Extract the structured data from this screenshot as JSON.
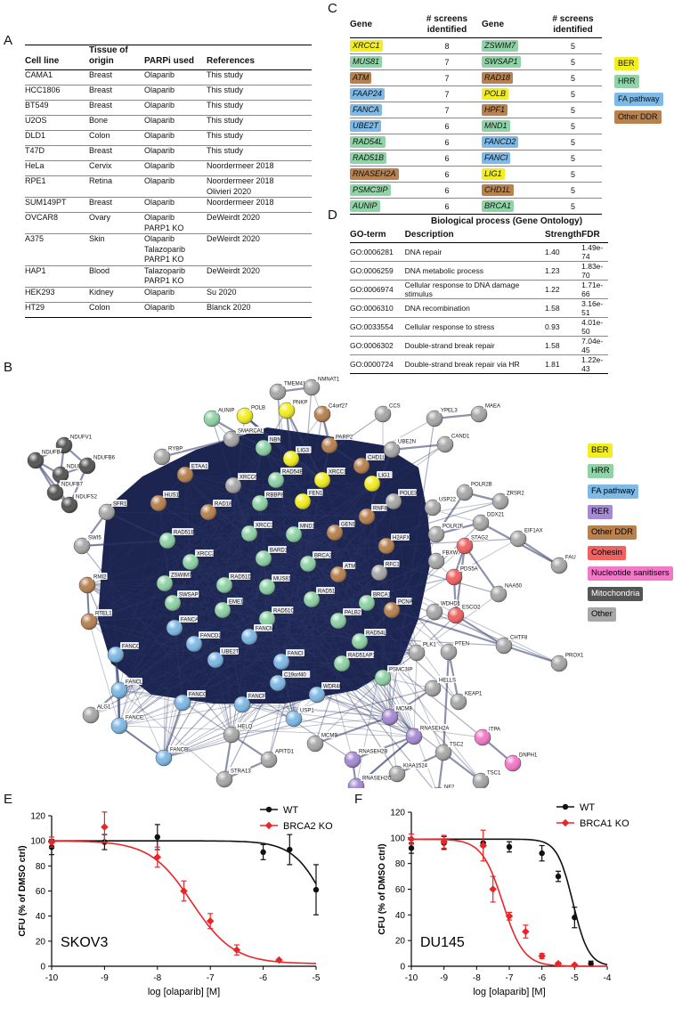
{
  "panels": {
    "a": "A",
    "b": "B",
    "c": "C",
    "d": "D",
    "e": "E",
    "f": "F"
  },
  "tableA": {
    "headers": [
      "Cell line",
      "Tissue of origin",
      "PARPi used",
      "References"
    ],
    "rows": [
      [
        "CAMA1",
        "Breast",
        "Olaparib",
        "This study"
      ],
      [
        "HCC1806",
        "Breast",
        "Olaparib",
        "This study"
      ],
      [
        "BT549",
        "Breast",
        "Olaparib",
        "This study"
      ],
      [
        "U2OS",
        "Bone",
        "Olaparib",
        "This study"
      ],
      [
        "DLD1",
        "Colon",
        "Olaparib",
        "This study"
      ],
      [
        "T47D",
        "Breast",
        "Olaparib",
        "This study"
      ],
      [
        "HeLa",
        "Cervix",
        "Olaparib",
        "Noordermeer 2018"
      ],
      [
        "RPE1",
        "Retina",
        "Olaparib",
        "Noordermeer 2018\nOlivieri 2020"
      ],
      [
        "SUM149PT",
        "Breast",
        "Olaparib",
        "Noordermeer 2018"
      ],
      [
        "OVCAR8",
        "Ovary",
        "Olaparib\nPARP1 KO",
        "DeWeirdt 2020"
      ],
      [
        "A375",
        "Skin",
        "Olaparib\nTalazoparib\nPARP1 KO",
        "DeWeirdt 2020"
      ],
      [
        "HAP1",
        "Blood",
        "Talazoparib\nPARP1 KO",
        "DeWeirdt 2020"
      ],
      [
        "HEK293",
        "Kidney",
        "Olaparib",
        "Su 2020"
      ],
      [
        "HT29",
        "Colon",
        "Olaparib",
        "Blanck 2020"
      ]
    ]
  },
  "tableC": {
    "headers": [
      "Gene",
      "# screens\nidentified",
      "Gene",
      "# screens\nidentified"
    ],
    "rows": [
      [
        {
          "g": "XRCC1",
          "c": "BER"
        },
        "8",
        {
          "g": "ZSWIM7",
          "c": "HRR"
        },
        "5"
      ],
      [
        {
          "g": "MUS81",
          "c": "HRR"
        },
        "7",
        {
          "g": "SWSAP1",
          "c": "HRR"
        },
        "5"
      ],
      [
        {
          "g": "ATM",
          "c": "DDR"
        },
        "7",
        {
          "g": "RAD18",
          "c": "DDR"
        },
        "5"
      ],
      [
        {
          "g": "FAAP24",
          "c": "FA"
        },
        "7",
        {
          "g": "POLB",
          "c": "BER"
        },
        "5"
      ],
      [
        {
          "g": "FANCA",
          "c": "FA"
        },
        "7",
        {
          "g": "HPF1",
          "c": "DDR"
        },
        "5"
      ],
      [
        {
          "g": "UBE2T",
          "c": "FA"
        },
        "6",
        {
          "g": "MND1",
          "c": "HRR"
        },
        "5"
      ],
      [
        {
          "g": "RAD54L",
          "c": "HRR"
        },
        "6",
        {
          "g": "FANCD2",
          "c": "FA"
        },
        "5"
      ],
      [
        {
          "g": "RAD51B",
          "c": "HRR"
        },
        "6",
        {
          "g": "FANCI",
          "c": "FA"
        },
        "5"
      ],
      [
        {
          "g": "RNASEH2A",
          "c": "DDR"
        },
        "6",
        {
          "g": "LIG1",
          "c": "BER"
        },
        "5"
      ],
      [
        {
          "g": "PSMC3IP",
          "c": "HRR"
        },
        "6",
        {
          "g": "CHD1L",
          "c": "DDR"
        },
        "5"
      ],
      [
        {
          "g": "AUNIP",
          "c": "HRR"
        },
        "6",
        {
          "g": "BRCA1",
          "c": "HRR"
        },
        "5"
      ]
    ],
    "legend": [
      {
        "label": "BER",
        "c": "BER"
      },
      {
        "label": "HRR",
        "c": "HRR"
      },
      {
        "label": "FA pathway",
        "c": "FA"
      },
      {
        "label": "Other DDR",
        "c": "DDR"
      }
    ]
  },
  "colors": {
    "BER": "#f2ee22",
    "HRR": "#8fd3a7",
    "FA": "#7fb9e6",
    "DDR": "#b78250",
    "RER": "#a68ad6",
    "Cohesin": "#f06262",
    "Nucleotide": "#f279c9",
    "Mito": "#555555",
    "Other": "#a8a8a8"
  },
  "tableD": {
    "title": "Biological process (Gene Ontology)",
    "headers": [
      "GO-term",
      "Description",
      "Strength",
      "FDR"
    ],
    "rows": [
      [
        "GO:0006281",
        "DNA repair",
        "1.40",
        "1.49e-74"
      ],
      [
        "GO:0006259",
        "DNA metabolic process",
        "1.23",
        "1.83e-70"
      ],
      [
        "GO:0006974",
        "Cellular response to DNA damage stimulus",
        "1.22",
        "1.71e-66"
      ],
      [
        "GO:0006310",
        "DNA recombination",
        "1.58",
        "3.16e-51"
      ],
      [
        "GO:0033554",
        "Cellular response to stress",
        "0.93",
        "4.01e-50"
      ],
      [
        "GO:0006302",
        "Double-strand break repair",
        "1.58",
        "7.04e-45"
      ],
      [
        "GO:0000724",
        "Double-strand break repair via HR",
        "1.81",
        "1.22e-43"
      ]
    ]
  },
  "networkLegend": [
    {
      "label": "BER",
      "c": "BER",
      "tc": "#000"
    },
    {
      "label": "HRR",
      "c": "HRR",
      "tc": "#000"
    },
    {
      "label": "FA pathway",
      "c": "FA",
      "tc": "#000"
    },
    {
      "label": "RER",
      "c": "RER",
      "tc": "#000"
    },
    {
      "label": "Other DDR",
      "c": "DDR",
      "tc": "#000"
    },
    {
      "label": "Cohesin",
      "c": "Cohesin",
      "tc": "#000"
    },
    {
      "label": "Nucleotide sanitisers",
      "c": "Nucleotide",
      "tc": "#000"
    },
    {
      "label": "Mitochondria",
      "c": "Mito",
      "tc": "#fff"
    },
    {
      "label": "Other",
      "c": "Other",
      "tc": "#000"
    }
  ],
  "network": {
    "nodes": [
      [
        "NDUFV1",
        "Mito"
      ],
      [
        "NDUFB4",
        "Mito"
      ],
      [
        "NDUFA2",
        "Mito"
      ],
      [
        "NDUFB6",
        "Mito"
      ],
      [
        "NDUFB7",
        "Mito"
      ],
      [
        "NDUFS2",
        "Mito"
      ],
      [
        "TMEM41B",
        "Other"
      ],
      [
        "NMNAT1",
        "Other"
      ],
      [
        "AUNIP",
        "HRR"
      ],
      [
        "POLB",
        "BER"
      ],
      [
        "PNKP",
        "BER"
      ],
      [
        "C4orf27",
        "DDR"
      ],
      [
        "CCS",
        "Other"
      ],
      [
        "YPEL3",
        "Other"
      ],
      [
        "MAEA",
        "Other"
      ],
      [
        "RYBP",
        "Other"
      ],
      [
        "SMARCAL1",
        "Other"
      ],
      [
        "NBN",
        "HRR"
      ],
      [
        "LIG3",
        "BER"
      ],
      [
        "PARP2",
        "DDR"
      ],
      [
        "CHD1L",
        "DDR"
      ],
      [
        "UBE2N",
        "Other"
      ],
      [
        "CAND1",
        "Other"
      ],
      [
        "SFR1",
        "Other"
      ],
      [
        "ETAA1",
        "DDR"
      ],
      [
        "XRCC1",
        "BER"
      ],
      [
        "XRCC6",
        "Other"
      ],
      [
        "RAD54B",
        "HRR"
      ],
      [
        "LIG1",
        "BER"
      ],
      [
        "POLE3",
        "Other"
      ],
      [
        "USP22",
        "Other"
      ],
      [
        "POLR2B",
        "Other"
      ],
      [
        "ZRSR2",
        "Other"
      ],
      [
        "HUS1",
        "DDR"
      ],
      [
        "RAD18",
        "DDR"
      ],
      [
        "RBBP8",
        "HRR"
      ],
      [
        "FEN1",
        "BER"
      ],
      [
        "RNF8",
        "DDR"
      ],
      [
        "POLR2F",
        "Other"
      ],
      [
        "DDX21",
        "Other"
      ],
      [
        "EIF1AX",
        "Other"
      ],
      [
        "FAU",
        "Other"
      ],
      [
        "SWI5",
        "Other"
      ],
      [
        "RAD51B",
        "HRR"
      ],
      [
        "XRCC2",
        "HRR"
      ],
      [
        "XRCC3",
        "HRR"
      ],
      [
        "MND1",
        "HRR"
      ],
      [
        "GEN1",
        "DDR"
      ],
      [
        "H2AFX",
        "DDR"
      ],
      [
        "FBXW7",
        "Other"
      ],
      [
        "STAG2",
        "Cohesin"
      ],
      [
        "RMI2",
        "DDR"
      ],
      [
        "ZSWIM7",
        "HRR"
      ],
      [
        "BARD1",
        "HRR"
      ],
      [
        "BRCA2",
        "HRR"
      ],
      [
        "ATM",
        "DDR"
      ],
      [
        "RFC1",
        "Other"
      ],
      [
        "PDS5A",
        "Cohesin"
      ],
      [
        "NAA50",
        "Other"
      ],
      [
        "RTEL1",
        "DDR"
      ],
      [
        "SWSAP1",
        "HRR"
      ],
      [
        "RAD51D",
        "HRR"
      ],
      [
        "MUS81",
        "HRR"
      ],
      [
        "RAD51",
        "HRR"
      ],
      [
        "BRCA1",
        "HRR"
      ],
      [
        "PCNA",
        "DDR"
      ],
      [
        "WDHD1",
        "Other"
      ],
      [
        "ESCO2",
        "Cohesin"
      ],
      [
        "FANCA",
        "FA"
      ],
      [
        "EME1",
        "HRR"
      ],
      [
        "RAD51C",
        "HRR"
      ],
      [
        "PALB2",
        "HRR"
      ],
      [
        "FANCC",
        "FA"
      ],
      [
        "FANCD2",
        "FA"
      ],
      [
        "FANCM",
        "FA"
      ],
      [
        "RAD54L",
        "HRR"
      ],
      [
        "PLK1",
        "Other"
      ],
      [
        "PTEN",
        "Other"
      ],
      [
        "CHTF8",
        "Other"
      ],
      [
        "PROX1",
        "Other"
      ],
      [
        "FANCL",
        "FA"
      ],
      [
        "UBE2T",
        "FA"
      ],
      [
        "FANCI",
        "FA"
      ],
      [
        "RAD51AP1",
        "HRR"
      ],
      [
        "PSMC3IP",
        "HRR"
      ],
      [
        "ALG1",
        "Other"
      ],
      [
        "C19orf40",
        "FA"
      ],
      [
        "WDR48",
        "FA"
      ],
      [
        "HELLS",
        "Other"
      ],
      [
        "KEAP1",
        "Other"
      ],
      [
        "FANCE",
        "FA"
      ],
      [
        "FANCG",
        "FA"
      ],
      [
        "FANCF",
        "FA"
      ],
      [
        "USP1",
        "FA"
      ],
      [
        "MCM8",
        "RER"
      ],
      [
        "RNASEH2A",
        "RER"
      ],
      [
        "ITPA",
        "Nucleotide"
      ],
      [
        "TSC2",
        "Other"
      ],
      [
        "DNPH1",
        "Nucleotide"
      ],
      [
        "FANCB",
        "FA"
      ],
      [
        "HELQ",
        "Other"
      ],
      [
        "APITD1",
        "Other"
      ],
      [
        "MCM9",
        "Other"
      ],
      [
        "STRA13",
        "Other"
      ],
      [
        "RNASEH2B",
        "RER"
      ],
      [
        "KIAA1524",
        "Other"
      ],
      [
        "TSC1",
        "Other"
      ],
      [
        "NF2",
        "Other"
      ],
      [
        "RNASEH2C",
        "RER"
      ]
    ]
  },
  "chartE": {
    "cell_label": "SKOV3",
    "chart_data": {
      "type": "line",
      "xlabel": "log [olaparib] [M]",
      "ylabel": "CFU (% of DMSO ctrl)",
      "xlim": [
        -10,
        -5
      ],
      "ylim": [
        0,
        120
      ],
      "xticks": [
        -10,
        -9,
        -8,
        -7,
        -6,
        -5
      ],
      "yticks": [
        0,
        20,
        40,
        60,
        80,
        100,
        120
      ],
      "series": [
        {
          "name": "WT",
          "color": "#111111",
          "points": [
            [
              -10,
              95,
              6
            ],
            [
              -9,
              99,
              6
            ],
            [
              -8,
              103,
              10
            ],
            [
              -6,
              91,
              6
            ],
            [
              -5.5,
              93,
              12
            ],
            [
              -5,
              61,
              20
            ]
          ],
          "fit": {
            "top": 100,
            "bottom": 0,
            "ec50": -4.8,
            "hill": 1.4
          }
        },
        {
          "name": "BRCA2 KO",
          "color": "#e8262a",
          "points": [
            [
              -10,
              99,
              4
            ],
            [
              -9,
              111,
              12
            ],
            [
              -8,
              87,
              8
            ],
            [
              -7.5,
              60,
              8
            ],
            [
              -7,
              36,
              6
            ],
            [
              -6.5,
              13,
              4
            ],
            [
              -5.7,
              5,
              0
            ]
          ],
          "fit": {
            "top": 100,
            "bottom": 2,
            "ec50": -7.35,
            "hill": 1.1
          }
        }
      ]
    }
  },
  "chartF": {
    "cell_label": "DU145",
    "chart_data": {
      "type": "line",
      "xlabel": "log [olaparib] [M]",
      "ylabel": "CFU (% of DMSO ctrl)",
      "xlim": [
        -10,
        -4
      ],
      "ylim": [
        0,
        120
      ],
      "xticks": [
        -10,
        -9,
        -8,
        -7,
        -6,
        -5,
        -4
      ],
      "yticks": [
        0,
        20,
        40,
        60,
        80,
        100,
        120
      ],
      "series": [
        {
          "name": "WT",
          "color": "#111111",
          "points": [
            [
              -10,
              92,
              4
            ],
            [
              -9,
              96,
              5
            ],
            [
              -7.8,
              96,
              3
            ],
            [
              -7,
              93,
              4
            ],
            [
              -6,
              88,
              6
            ],
            [
              -5.5,
              70,
              4
            ],
            [
              -5,
              38,
              8
            ],
            [
              -4.5,
              2,
              2
            ]
          ],
          "fit": {
            "top": 99,
            "bottom": 0,
            "ec50": -5.05,
            "hill": 1.8
          }
        },
        {
          "name": "BRCA1 KO",
          "color": "#e8262a",
          "points": [
            [
              -10,
              99,
              4
            ],
            [
              -9,
              97,
              5
            ],
            [
              -7.8,
              94,
              12
            ],
            [
              -7.5,
              60,
              10
            ],
            [
              -7,
              39,
              3
            ],
            [
              -6.5,
              27,
              5
            ],
            [
              -6,
              8,
              2
            ],
            [
              -5.5,
              2,
              1
            ],
            [
              -5,
              1,
              0
            ]
          ],
          "fit": {
            "top": 99,
            "bottom": 0,
            "ec50": -7.2,
            "hill": 1.35
          }
        }
      ]
    }
  }
}
